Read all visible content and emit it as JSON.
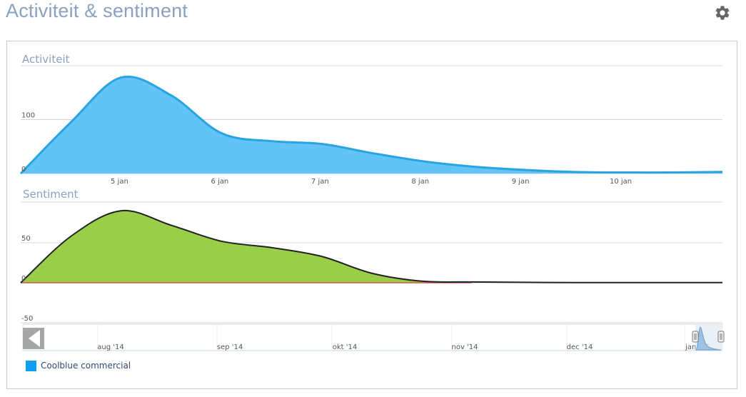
{
  "page": {
    "title": "Activiteit & sentiment",
    "settings_icon": "gear-icon"
  },
  "colors": {
    "activity_fill": "#62c3f7",
    "activity_line": "#2aa4e0",
    "sentiment_fill": "#9acd48",
    "sentiment_line": "#222222",
    "negative_line": "#d9534f",
    "title": "#8aa2c2",
    "grid": "#d5d5d5",
    "legend_swatch": "#0f9ef0"
  },
  "chart_data": [
    {
      "type": "area",
      "title": "Activiteit",
      "x_unit": "days (January)",
      "x_tick_labels": [
        "5 jan",
        "6 jan",
        "7 jan",
        "8 jan",
        "9 jan",
        "10 jan"
      ],
      "x_tick_values": [
        5,
        6,
        7,
        8,
        9,
        10
      ],
      "xlim": [
        4,
        11
      ],
      "y_tick_labels": [
        "0",
        "100"
      ],
      "y_tick_values": [
        0,
        100
      ],
      "ylim": [
        0,
        200
      ],
      "grid": true,
      "series": [
        {
          "name": "Coolblue commercial",
          "x": [
            4.0,
            4.5,
            5.0,
            5.5,
            6.0,
            6.5,
            7.0,
            7.5,
            8.0,
            8.5,
            9.0,
            9.5,
            10.0,
            10.5,
            11.0
          ],
          "y": [
            0,
            95,
            178,
            145,
            75,
            60,
            55,
            38,
            23,
            13,
            7,
            3,
            2,
            2,
            3
          ]
        }
      ]
    },
    {
      "type": "area",
      "title": "Sentiment",
      "x_tick_labels": [],
      "y_tick_labels": [
        "-50",
        "0",
        "50"
      ],
      "y_tick_values": [
        -50,
        0,
        50
      ],
      "ylim": [
        -50,
        100
      ],
      "grid": true,
      "series": [
        {
          "name": "",
          "x": [
            4.0,
            4.5,
            5.0,
            5.5,
            6.0,
            6.5,
            7.0,
            7.5,
            8.0,
            8.5,
            9.0,
            9.5,
            10.0,
            10.5,
            11.0
          ],
          "y": [
            0,
            58,
            90,
            72,
            52,
            44,
            33,
            12,
            2,
            1,
            0.5,
            0.3,
            0.2,
            0.2,
            0.2
          ]
        }
      ]
    }
  ],
  "navigator": {
    "labels": [
      "aug '14",
      "sep '14",
      "okt '14",
      "nov '14",
      "dec '14",
      "jan '15"
    ],
    "scroll_left_icon": "arrow-left-icon",
    "handle_icon": "drag-handle-icon"
  },
  "legend": {
    "items": [
      {
        "label": "Coolblue commercial"
      }
    ]
  }
}
